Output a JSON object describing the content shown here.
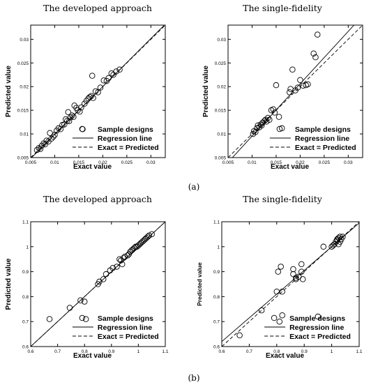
{
  "figure": {
    "label_a": "(a)",
    "label_b": "(b)"
  },
  "chart_data": [
    {
      "type": "scatter",
      "title": "The developed approach",
      "xlabel": "Exact value",
      "ylabel": "Predicted value",
      "xlim": [
        0.005,
        0.033
      ],
      "ylim": [
        0.005,
        0.033
      ],
      "x_ticks": [
        "0.005",
        "0.01",
        "0.015",
        "0.02",
        "0.025",
        "0.03"
      ],
      "y_ticks": [
        "0.005",
        "0.01",
        "0.015",
        "0.02",
        "0.025",
        "0.03"
      ],
      "legend": [
        "Sample designs",
        "Regression line",
        "Exact = Predicted"
      ],
      "legend_position": "bottom-right",
      "regression": [
        [
          0.005,
          0.0048
        ],
        [
          0.033,
          0.0332
        ]
      ],
      "points": [
        [
          0.0063,
          0.0066
        ],
        [
          0.0067,
          0.007
        ],
        [
          0.007,
          0.0068
        ],
        [
          0.0073,
          0.0075
        ],
        [
          0.0077,
          0.008
        ],
        [
          0.008,
          0.0078
        ],
        [
          0.0083,
          0.0086
        ],
        [
          0.0087,
          0.0084
        ],
        [
          0.009,
          0.0102
        ],
        [
          0.0093,
          0.009
        ],
        [
          0.0097,
          0.0094
        ],
        [
          0.01,
          0.0098
        ],
        [
          0.0104,
          0.0107
        ],
        [
          0.0108,
          0.0112
        ],
        [
          0.0112,
          0.011
        ],
        [
          0.0116,
          0.0119
        ],
        [
          0.012,
          0.012
        ],
        [
          0.0123,
          0.0131
        ],
        [
          0.0126,
          0.0128
        ],
        [
          0.0128,
          0.0146
        ],
        [
          0.013,
          0.0127
        ],
        [
          0.0133,
          0.0135
        ],
        [
          0.0136,
          0.0139
        ],
        [
          0.0139,
          0.0136
        ],
        [
          0.0141,
          0.016
        ],
        [
          0.0145,
          0.0155
        ],
        [
          0.0148,
          0.015
        ],
        [
          0.0152,
          0.0147
        ],
        [
          0.0155,
          0.0156
        ],
        [
          0.0158,
          0.011
        ],
        [
          0.0162,
          0.0164
        ],
        [
          0.0166,
          0.017
        ],
        [
          0.017,
          0.0175
        ],
        [
          0.0173,
          0.0178
        ],
        [
          0.0176,
          0.018
        ],
        [
          0.018,
          0.0176
        ],
        [
          0.0185,
          0.019
        ],
        [
          0.019,
          0.0188
        ],
        [
          0.0195,
          0.0198
        ],
        [
          0.0202,
          0.0213
        ],
        [
          0.0208,
          0.0212
        ],
        [
          0.0212,
          0.0218
        ],
        [
          0.0218,
          0.0228
        ],
        [
          0.0222,
          0.0225
        ],
        [
          0.0228,
          0.0232
        ],
        [
          0.0178,
          0.0223
        ],
        [
          0.0235,
          0.0236
        ]
      ]
    },
    {
      "type": "scatter",
      "title": "The single-fidelity",
      "xlabel": "Exact value",
      "ylabel": "Predicted value",
      "xlim": [
        0.005,
        0.033
      ],
      "ylim": [
        0.005,
        0.033
      ],
      "x_ticks": [
        "0.005",
        "0.01",
        "0.015",
        "0.02",
        "0.025",
        "0.03"
      ],
      "y_ticks": [
        "0.005",
        "0.01",
        "0.015",
        "0.02",
        "0.025",
        "0.03"
      ],
      "legend": [
        "Sample designs",
        "Regression line",
        "Exact = Predicted"
      ],
      "legend_position": "bottom-right",
      "regression": [
        [
          0.005,
          0.004
        ],
        [
          0.033,
          0.035
        ]
      ],
      "points": [
        [
          0.0102,
          0.01
        ],
        [
          0.0104,
          0.0106
        ],
        [
          0.0107,
          0.0104
        ],
        [
          0.011,
          0.0112
        ],
        [
          0.0112,
          0.0118
        ],
        [
          0.0115,
          0.0114
        ],
        [
          0.0118,
          0.012
        ],
        [
          0.0122,
          0.0124
        ],
        [
          0.0126,
          0.0128
        ],
        [
          0.013,
          0.0126
        ],
        [
          0.0133,
          0.0134
        ],
        [
          0.0136,
          0.013
        ],
        [
          0.014,
          0.015
        ],
        [
          0.0144,
          0.0152
        ],
        [
          0.0147,
          0.0145
        ],
        [
          0.015,
          0.0203
        ],
        [
          0.0156,
          0.0136
        ],
        [
          0.0162,
          0.0112
        ],
        [
          0.0178,
          0.0188
        ],
        [
          0.018,
          0.0195
        ],
        [
          0.0184,
          0.0236
        ],
        [
          0.019,
          0.0192
        ],
        [
          0.0195,
          0.0198
        ],
        [
          0.02,
          0.0214
        ],
        [
          0.0206,
          0.0202
        ],
        [
          0.0212,
          0.0203
        ],
        [
          0.0216,
          0.0205
        ],
        [
          0.0228,
          0.027
        ],
        [
          0.0232,
          0.0262
        ],
        [
          0.0236,
          0.031
        ],
        [
          0.012,
          0.0118
        ],
        [
          0.0128,
          0.013
        ]
      ]
    },
    {
      "type": "scatter",
      "title": "The developed approach",
      "xlabel": "Exact value",
      "ylabel": "Predicted value",
      "xlim": [
        0.6,
        1.1
      ],
      "ylim": [
        0.6,
        1.1
      ],
      "x_ticks": [
        "0.6",
        "0.7",
        "0.8",
        "0.9",
        "1",
        "1.1"
      ],
      "y_ticks": [
        "0.6",
        "0.7",
        "0.8",
        "0.9",
        "1",
        "1.1"
      ],
      "legend": [
        "Sample designs",
        "Regression line",
        "Exact = Predicted"
      ],
      "legend_position": "bottom-right",
      "regression": [
        [
          0.6,
          0.6
        ],
        [
          1.1,
          1.1
        ]
      ],
      "points": [
        [
          0.67,
          0.71
        ],
        [
          0.745,
          0.755
        ],
        [
          0.785,
          0.785
        ],
        [
          0.8,
          0.78
        ],
        [
          0.805,
          0.71
        ],
        [
          0.85,
          0.85
        ],
        [
          0.855,
          0.86
        ],
        [
          0.87,
          0.87
        ],
        [
          0.88,
          0.89
        ],
        [
          0.895,
          0.905
        ],
        [
          0.905,
          0.915
        ],
        [
          0.92,
          0.92
        ],
        [
          0.935,
          0.945
        ],
        [
          0.94,
          0.93
        ],
        [
          0.945,
          0.955
        ],
        [
          0.95,
          0.96
        ],
        [
          0.96,
          0.965
        ],
        [
          0.965,
          0.97
        ],
        [
          0.97,
          0.98
        ],
        [
          0.975,
          0.985
        ],
        [
          0.98,
          0.99
        ],
        [
          0.985,
          0.995
        ],
        [
          0.99,
          1.0
        ],
        [
          0.995,
          1.0
        ],
        [
          1.0,
          1.005
        ],
        [
          1.005,
          1.01
        ],
        [
          1.01,
          1.015
        ],
        [
          1.015,
          1.02
        ],
        [
          1.02,
          1.025
        ],
        [
          1.025,
          1.03
        ],
        [
          1.03,
          1.035
        ],
        [
          1.035,
          1.04
        ],
        [
          1.04,
          1.045
        ],
        [
          1.05,
          1.05
        ],
        [
          0.93,
          0.95
        ]
      ]
    },
    {
      "type": "scatter",
      "title": "The single-fidelity",
      "xlabel": "Exact value",
      "ylabel": "Predicted value",
      "xlim": [
        0.6,
        1.1
      ],
      "ylim": [
        0.6,
        1.1
      ],
      "x_ticks": [
        "0.6",
        "0.7",
        "0.8",
        "0.9",
        "1",
        "1.1"
      ],
      "y_ticks": [
        "0.6",
        "0.7",
        "0.8",
        "0.9",
        "1",
        "1.1"
      ],
      "legend": [
        "Sample designs",
        "Regression line",
        "Exact = Predicted"
      ],
      "legend_position": "bottom-right",
      "regression": [
        [
          0.6,
          0.62
        ],
        [
          1.1,
          1.095
        ]
      ],
      "points": [
        [
          0.665,
          0.645
        ],
        [
          0.745,
          0.745
        ],
        [
          0.8,
          0.82
        ],
        [
          0.805,
          0.9
        ],
        [
          0.81,
          0.7
        ],
        [
          0.815,
          0.92
        ],
        [
          0.82,
          0.82
        ],
        [
          0.82,
          0.725
        ],
        [
          0.86,
          0.91
        ],
        [
          0.86,
          0.89
        ],
        [
          0.87,
          0.875
        ],
        [
          0.87,
          0.87
        ],
        [
          0.89,
          0.9
        ],
        [
          0.89,
          0.93
        ],
        [
          0.895,
          0.87
        ],
        [
          0.95,
          0.72
        ],
        [
          0.97,
          1.0
        ],
        [
          1.0,
          1.0
        ],
        [
          1.005,
          1.005
        ],
        [
          1.01,
          1.01
        ],
        [
          1.015,
          1.02
        ],
        [
          1.02,
          1.025
        ],
        [
          1.02,
          1.03
        ],
        [
          1.025,
          1.035
        ],
        [
          1.03,
          1.04
        ],
        [
          1.03,
          1.02
        ],
        [
          1.035,
          1.03
        ],
        [
          1.025,
          1.01
        ],
        [
          1.04,
          1.04
        ],
        [
          0.88,
          0.88
        ]
      ]
    }
  ]
}
